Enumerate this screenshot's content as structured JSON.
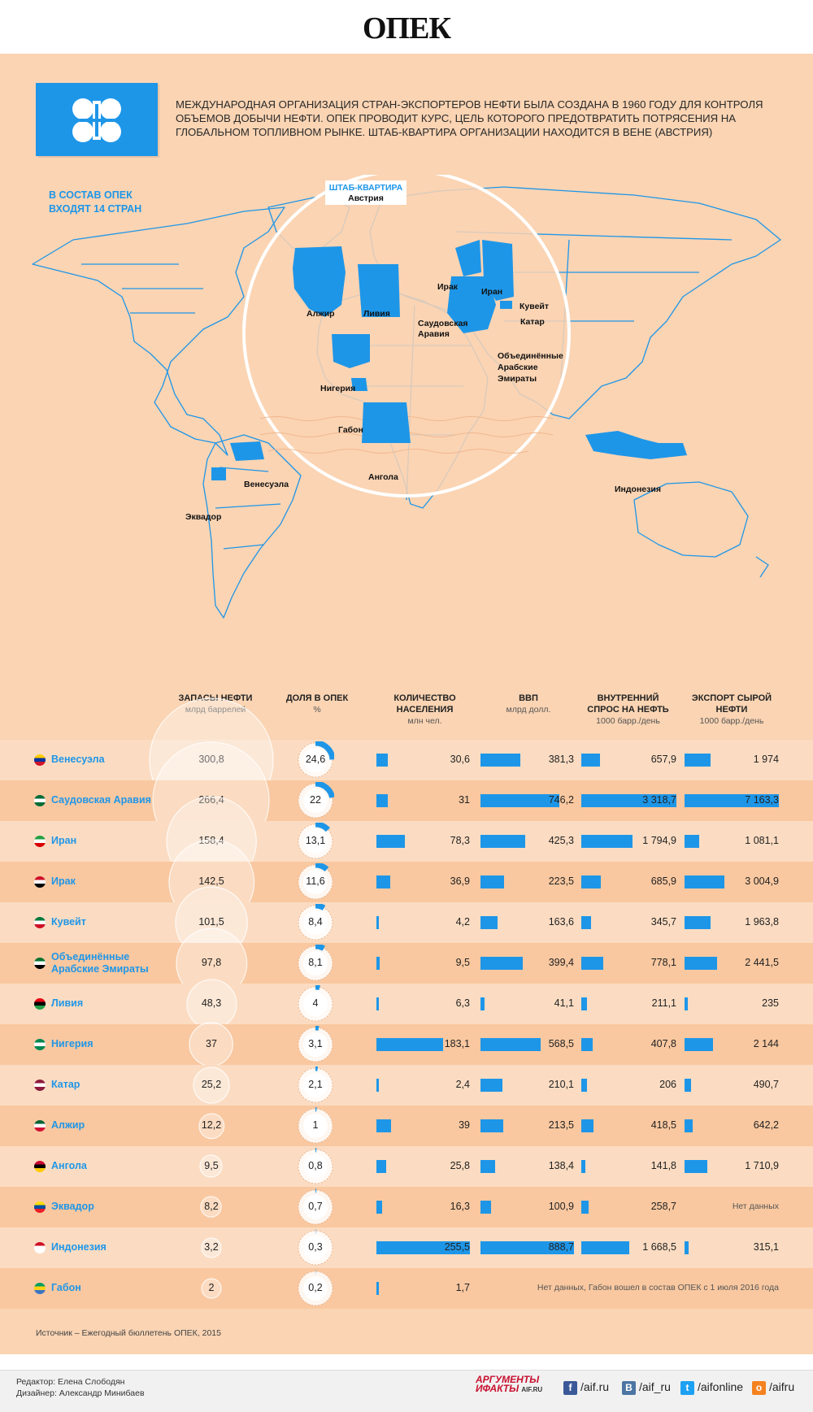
{
  "title": "ОПЕК",
  "intro": "Международная организация стран-экспортеров нефти была создана в 1960 году для контроля объемов добычи нефти. ОПЕК проводит курс, цель которого предотвратить потрясения на глобальном топливном рынке. Штаб-квартира организации находится в Вене (Австрия)",
  "members_note": "В СОСТАВ ОПЕК ВХОДЯТ 14 СТРАН",
  "hq": {
    "label": "ШТАБ-КВАРТИРА",
    "country": "Австрия"
  },
  "map_labels": {
    "algeria": "Алжир",
    "libya": "Ливия",
    "iraq": "Ирак",
    "iran": "Иран",
    "kuwait": "Кувейт",
    "saudi": "Саудовская Аравия",
    "qatar": "Катар",
    "uae": "Объединённые Арабские Эмираты",
    "nigeria": "Нигерия",
    "gabon": "Габон",
    "angola": "Ангола",
    "venezuela": "Венесуэла",
    "ecuador": "Эквадор",
    "indonesia": "Индонезия"
  },
  "headers": {
    "reserves": "ЗАПАСЫ НЕФТИ",
    "reserves_unit": "млрд баррелей",
    "share": "ДОЛЯ В ОПЕК",
    "share_unit": "%",
    "population": "КОЛИЧЕСТВО НАСЕЛЕНИЯ",
    "population_unit": "млн чел.",
    "gdp": "ВВП",
    "gdp_unit": "млрд долл.",
    "demand": "ВНУТРЕННИЙ СПРОС НА НЕФТЬ",
    "demand_unit": "1000 барр./день",
    "export": "ЭКСПОРТ СЫРОЙ НЕФТИ",
    "export_unit": "1000 барр./день"
  },
  "rows": [
    {
      "country": "Венесуэла",
      "reserves": "300,8",
      "share": "24,6",
      "population": "30,6",
      "gdp": "381,3",
      "demand": "657,9",
      "export": "1 974"
    },
    {
      "country": "Саудовская Аравия",
      "reserves": "266,4",
      "share": "22",
      "population": "31",
      "gdp": "746,2",
      "demand": "3 318,7",
      "export": "7 163,3"
    },
    {
      "country": "Иран",
      "reserves": "158,4",
      "share": "13,1",
      "population": "78,3",
      "gdp": "425,3",
      "demand": "1 794,9",
      "export": "1 081,1"
    },
    {
      "country": "Ирак",
      "reserves": "142,5",
      "share": "11,6",
      "population": "36,9",
      "gdp": "223,5",
      "demand": "685,9",
      "export": "3 004,9"
    },
    {
      "country": "Кувейт",
      "reserves": "101,5",
      "share": "8,4",
      "population": "4,2",
      "gdp": "163,6",
      "demand": "345,7",
      "export": "1 963,8"
    },
    {
      "country": "Объединённые Арабские Эмираты",
      "reserves": "97,8",
      "share": "8,1",
      "population": "9,5",
      "gdp": "399,4",
      "demand": "778,1",
      "export": "2 441,5"
    },
    {
      "country": "Ливия",
      "reserves": "48,3",
      "share": "4",
      "population": "6,3",
      "gdp": "41,1",
      "demand": "211,1",
      "export": "235"
    },
    {
      "country": "Нигерия",
      "reserves": "37",
      "share": "3,1",
      "population": "183,1",
      "gdp": "568,5",
      "demand": "407,8",
      "export": "2 144"
    },
    {
      "country": "Катар",
      "reserves": "25,2",
      "share": "2,1",
      "population": "2,4",
      "gdp": "210,1",
      "demand": "206",
      "export": "490,7"
    },
    {
      "country": "Алжир",
      "reserves": "12,2",
      "share": "1",
      "population": "39",
      "gdp": "213,5",
      "demand": "418,5",
      "export": "642,2"
    },
    {
      "country": "Ангола",
      "reserves": "9,5",
      "share": "0,8",
      "population": "25,8",
      "gdp": "138,4",
      "demand": "141,8",
      "export": "1 710,9"
    },
    {
      "country": "Эквадор",
      "reserves": "8,2",
      "share": "0,7",
      "population": "16,3",
      "gdp": "100,9",
      "demand": "258,7",
      "export": "Нет данных"
    },
    {
      "country": "Индонезия",
      "reserves": "3,2",
      "share": "0,3",
      "population": "255,5",
      "gdp": "888,7",
      "demand": "1 668,5",
      "export": "315,1"
    },
    {
      "country": "Габон",
      "reserves": "2",
      "share": "0,2",
      "population": "1,7",
      "gdp": "",
      "demand": "",
      "export": "",
      "note": "Нет данных, Габон вошел в состав ОПЕК с 1 июля 2016 года"
    }
  ],
  "source": "Источник – Ежегодный бюллетень ОПЕК, 2015",
  "editor": "Редактор: Елена Слободян",
  "designer": "Дизайнер: Александр Минибаев",
  "brand": {
    "line1": "АРГУМЕНТЫ",
    "line2": "ИФАКТЫ",
    "site": "AIF.RU"
  },
  "social": [
    {
      "icon": "facebook-icon",
      "glyph": "f",
      "text": "/aif.ru",
      "color": "#3b5998"
    },
    {
      "icon": "vk-icon",
      "glyph": "B",
      "text": "/aif_ru",
      "color": "#4c75a3"
    },
    {
      "icon": "twitter-icon",
      "glyph": "t",
      "text": "/aifonline",
      "color": "#1da1f2"
    },
    {
      "icon": "odnoklassniki-icon",
      "glyph": "o",
      "text": "/aifru",
      "color": "#f58220"
    }
  ],
  "colors": {
    "accent": "#1e96e8",
    "background": "#fad4b3",
    "row_alt": "#f9c8a0"
  },
  "chart_data": {
    "type": "table",
    "categories": [
      "Венесуэла",
      "Саудовская Аравия",
      "Иран",
      "Ирак",
      "Кувейт",
      "Объединённые Арабские Эмираты",
      "Ливия",
      "Нигерия",
      "Катар",
      "Алжир",
      "Ангола",
      "Эквадор",
      "Индонезия",
      "Габон"
    ],
    "series": [
      {
        "name": "ЗАПАСЫ НЕФТИ",
        "values": [
          300.8,
          266.4,
          158.4,
          142.5,
          101.5,
          97.8,
          48.3,
          37,
          25.2,
          12.2,
          9.5,
          8.2,
          3.2,
          2
        ]
      },
      {
        "name": "ДОЛЯ В ОПЕК",
        "values": [
          24.6,
          22,
          13.1,
          11.6,
          8.4,
          8.1,
          4,
          3.1,
          2.1,
          1,
          0.8,
          0.7,
          0.3,
          0.2
        ]
      },
      {
        "name": "КОЛИЧЕСТВО НАСЕЛЕНИЯ",
        "values": [
          30.6,
          31,
          78.3,
          36.9,
          4.2,
          9.5,
          6.3,
          183.1,
          2.4,
          39,
          25.8,
          16.3,
          255.5,
          1.7
        ]
      },
      {
        "name": "ВВП",
        "values": [
          381.3,
          746.2,
          425.3,
          223.5,
          163.6,
          399.4,
          41.1,
          568.5,
          210.1,
          213.5,
          138.4,
          100.9,
          888.7,
          null
        ]
      },
      {
        "name": "ВНУТРЕННИЙ СПРОС НА НЕФТЬ",
        "values": [
          657.9,
          3318.7,
          1794.9,
          685.9,
          345.7,
          778.1,
          211.1,
          407.8,
          206,
          418.5,
          141.8,
          258.7,
          1668.5,
          null
        ]
      },
      {
        "name": "ЭКСПОРТ СЫРОЙ НЕФТИ",
        "values": [
          1974,
          7163.3,
          1081.1,
          3004.9,
          1963.8,
          2441.5,
          235,
          2144,
          490.7,
          642.2,
          1710.9,
          null,
          315.1,
          null
        ]
      }
    ]
  }
}
